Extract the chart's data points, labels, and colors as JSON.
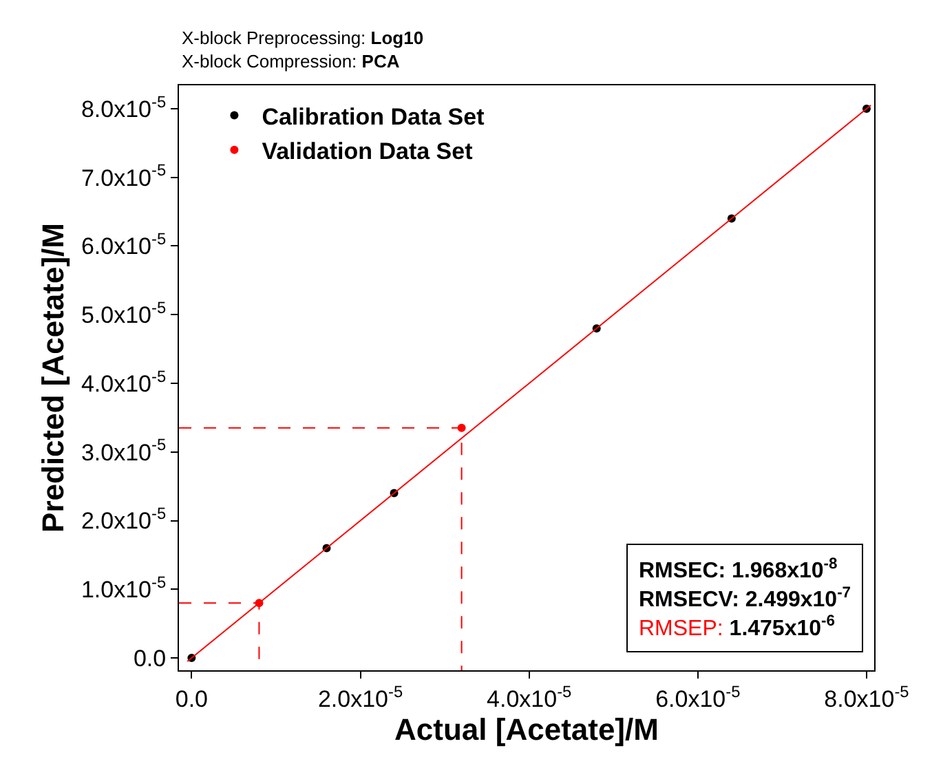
{
  "chart_data": {
    "type": "scatter",
    "title": "X-block Preprocessing: Log10",
    "subtitle": "X-block Compression: PCA",
    "xlabel": "Actual [Acetate]/M",
    "ylabel": "Predicted [Acetate]/M",
    "series": [
      {
        "name": "Calibration Data Set",
        "color": "#000000",
        "x": [
          0,
          1.6e-05,
          2.4e-05,
          4.8e-05,
          6.4e-05,
          8e-05
        ],
        "values": [
          0,
          1.6e-05,
          2.4e-05,
          4.8e-05,
          6.4e-05,
          8e-05
        ]
      },
      {
        "name": "Validation Data Set",
        "color": "#ff0000",
        "x": [
          8e-06,
          3.2e-05
        ],
        "values": [
          8e-06,
          3.35e-05
        ]
      },
      {
        "color": "#ff0000",
        "type": "line",
        "marker": "none",
        "x": [
          -5e-07,
          8.05e-05
        ],
        "values": [
          -5e-07,
          8.05e-05
        ]
      },
      {
        "color": "#ff0000",
        "type": "line",
        "marker": "none",
        "line_style": "dashed",
        "x": [
          -1.5e-06,
          8e-06,
          8e-06
        ],
        "values": [
          8e-06,
          8e-06,
          -1.8e-06
        ]
      },
      {
        "color": "#ff0000",
        "type": "line",
        "marker": "none",
        "line_style": "dashed",
        "x": [
          -1.5e-06,
          3.2e-05,
          3.2e-05
        ],
        "values": [
          3.35e-05,
          3.35e-05,
          -1.8e-06
        ]
      }
    ],
    "annotations": [
      "RMSEC: 1.968x10$^{-8}$",
      "RMSECV: 2.499x10$^{-7}$",
      "RMSEP: 1.475x10$^{-6}$"
    ],
    "xlim": [
      -1.5e-06,
      8.09e-05
    ],
    "ylim": [
      -1.8e-06,
      8.34e-05
    ],
    "xticks": [
      {
        "value": 0,
        "label": "0.0"
      },
      {
        "value": 2e-05,
        "label": "2.0x10$^{-5}$"
      },
      {
        "value": 4e-05,
        "label": "4.0x10$^{-5}$"
      },
      {
        "value": 6e-05,
        "label": "6.0x10$^{-5}$"
      },
      {
        "value": 8e-05,
        "label": "8.0x10$^{-5}$"
      }
    ],
    "yticks": [
      {
        "value": 0,
        "label": "0.0"
      },
      {
        "value": 1e-05,
        "label": "1.0x10$^{-5}$"
      },
      {
        "value": 2e-05,
        "label": "2.0x10$^{-5}$"
      },
      {
        "value": 3e-05,
        "label": "3.0x10$^{-5}$"
      },
      {
        "value": 4e-05,
        "label": "4.0x10$^{-5}$"
      },
      {
        "value": 5e-05,
        "label": "5.0x10$^{-5}$"
      },
      {
        "value": 6e-05,
        "label": "6.0x10$^{-5}$"
      },
      {
        "value": 7e-05,
        "label": "7.0x10$^{-5}$"
      },
      {
        "value": 8e-05,
        "label": "8.0x10$^{-5}$"
      }
    ],
    "marker": "circle",
    "legend": "top left"
  }
}
